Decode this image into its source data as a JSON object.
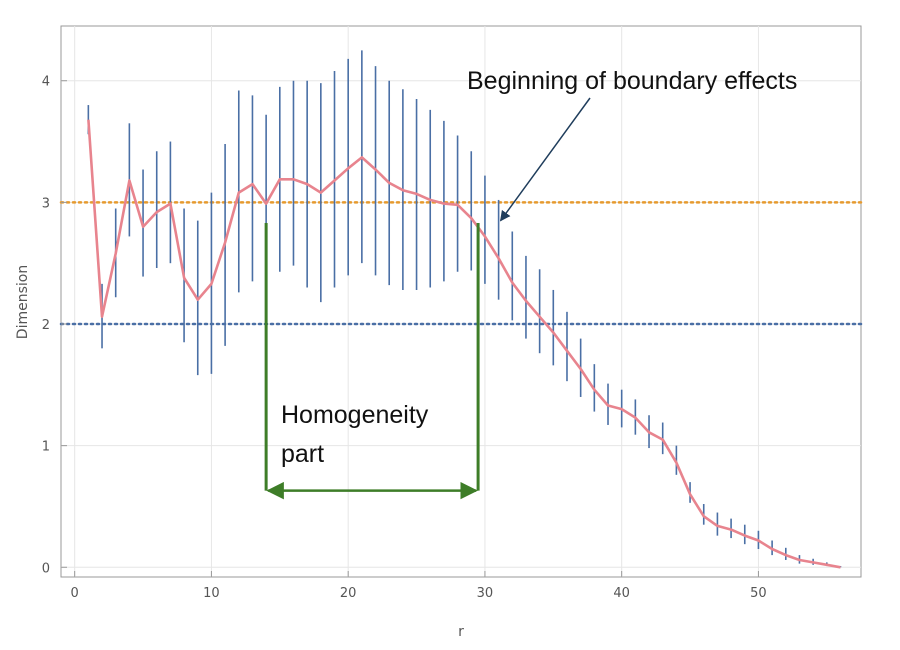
{
  "chart_data": {
    "type": "line",
    "title": "",
    "xlabel": "r",
    "ylabel": "Dimension",
    "xlim": [
      -1,
      57.5
    ],
    "ylim": [
      -0.08,
      4.45
    ],
    "x_ticks": [
      "0",
      "10",
      "20",
      "30",
      "40",
      "50"
    ],
    "x_tick_values": [
      0,
      10,
      20,
      30,
      40,
      50
    ],
    "y_ticks": [
      "0",
      "1",
      "2",
      "3",
      "4"
    ],
    "y_tick_values": [
      0,
      1,
      2,
      3,
      4
    ],
    "grid": true,
    "series": [
      {
        "kind": "line-with-error-bars",
        "color": "#e8848e",
        "error_color": "#4a6fa5",
        "x": [
          1,
          2,
          3,
          4,
          5,
          6,
          7,
          8,
          9,
          10,
          11,
          12,
          13,
          14,
          15,
          16,
          17,
          18,
          19,
          20,
          21,
          22,
          23,
          24,
          25,
          26,
          27,
          28,
          29,
          30,
          31,
          32,
          33,
          34,
          35,
          36,
          37,
          38,
          39,
          40,
          41,
          42,
          43,
          44,
          45,
          46,
          47,
          48,
          49,
          50,
          51,
          52,
          53,
          54,
          55,
          56
        ],
        "y": [
          3.68,
          2.06,
          2.58,
          3.18,
          2.8,
          2.92,
          2.99,
          2.38,
          2.2,
          2.33,
          2.67,
          3.08,
          3.15,
          2.99,
          3.19,
          3.19,
          3.15,
          3.08,
          3.18,
          3.28,
          3.37,
          3.27,
          3.16,
          3.1,
          3.07,
          3.02,
          2.99,
          2.98,
          2.87,
          2.72,
          2.54,
          2.34,
          2.19,
          2.06,
          1.93,
          1.78,
          1.63,
          1.46,
          1.33,
          1.3,
          1.23,
          1.11,
          1.05,
          0.86,
          0.6,
          0.42,
          0.34,
          0.31,
          0.26,
          0.22,
          0.15,
          0.1,
          0.06,
          0.04,
          0.02,
          0.0
        ],
        "err_low": [
          3.56,
          1.8,
          2.22,
          2.72,
          2.39,
          2.46,
          2.5,
          1.85,
          1.58,
          1.59,
          1.82,
          2.26,
          2.35,
          2.32,
          2.43,
          2.48,
          2.3,
          2.18,
          2.3,
          2.4,
          2.5,
          2.4,
          2.32,
          2.28,
          2.28,
          2.3,
          2.35,
          2.43,
          2.44,
          2.33,
          2.2,
          2.03,
          1.88,
          1.76,
          1.66,
          1.53,
          1.4,
          1.28,
          1.17,
          1.15,
          1.09,
          0.98,
          0.93,
          0.76,
          0.53,
          0.35,
          0.26,
          0.24,
          0.19,
          0.15,
          0.1,
          0.06,
          0.03,
          0.02,
          0.01,
          0.0
        ],
        "err_high": [
          3.8,
          2.33,
          2.95,
          3.65,
          3.27,
          3.42,
          3.5,
          2.95,
          2.85,
          3.08,
          3.48,
          3.92,
          3.88,
          3.72,
          3.95,
          4.0,
          4.0,
          3.98,
          4.08,
          4.18,
          4.25,
          4.12,
          4.0,
          3.93,
          3.85,
          3.76,
          3.67,
          3.55,
          3.42,
          3.22,
          3.02,
          2.76,
          2.56,
          2.45,
          2.28,
          2.1,
          1.88,
          1.67,
          1.51,
          1.46,
          1.38,
          1.25,
          1.19,
          1.0,
          0.7,
          0.52,
          0.45,
          0.4,
          0.35,
          0.3,
          0.22,
          0.16,
          0.1,
          0.07,
          0.04,
          0.01
        ]
      }
    ],
    "reference_lines": [
      {
        "y": 3,
        "color": "#e69a2e",
        "style": "dotted"
      },
      {
        "y": 2,
        "color": "#4a6fa5",
        "style": "dotted"
      }
    ],
    "annotations": {
      "boundary": {
        "text": "Beginning of boundary effects",
        "arrow_to": [
          31,
          2.85
        ],
        "color": "#1f3d5c"
      },
      "homogeneity": {
        "lines": [
          "Homogeneity",
          "part"
        ],
        "x_from": 14,
        "x_to": 29.5,
        "arrow_y": 0.63,
        "bracket_top": 2.83,
        "color": "#3e7d28"
      }
    }
  }
}
